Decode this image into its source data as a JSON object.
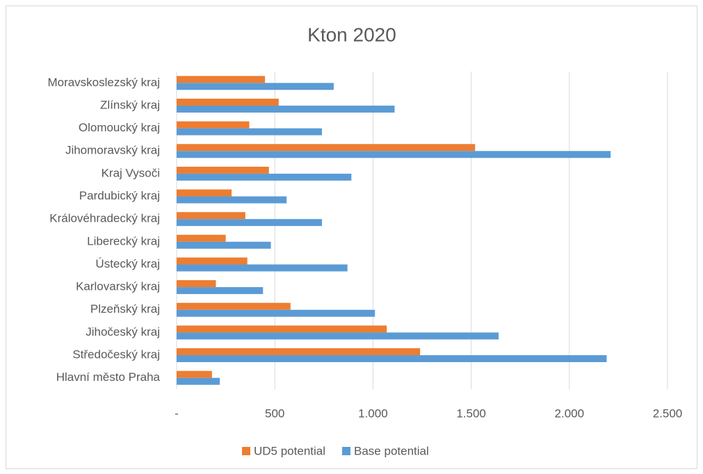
{
  "chart_data": {
    "type": "bar",
    "orientation": "horizontal",
    "title": "Kton 2020",
    "categories": [
      "Hlavní město Praha",
      "Středočeský kraj",
      "Jihočeský kraj",
      "Plzeňský kraj",
      "Karlovarský kraj",
      "Ústecký kraj",
      "Liberecký kraj",
      "Královéhradecký kraj",
      "Pardubický kraj",
      "Kraj Vysoči",
      "Jihomoravský kraj",
      "Olomoucký kraj",
      "Zlínský kraj",
      "Moravskoslezský kraj"
    ],
    "series": [
      {
        "name": "UD5 potential",
        "color": "#ed7d31",
        "values": [
          180,
          1240,
          1070,
          580,
          200,
          360,
          250,
          350,
          280,
          470,
          1520,
          370,
          520,
          450
        ]
      },
      {
        "name": "Base potential",
        "color": "#5b9bd5",
        "values": [
          220,
          2190,
          1640,
          1010,
          440,
          870,
          480,
          740,
          560,
          890,
          2210,
          740,
          1110,
          800
        ]
      }
    ],
    "xlim": [
      0,
      2500
    ],
    "xticks": [
      {
        "value": 0,
        "label": "-"
      },
      500,
      {
        "value": 1000,
        "label": "1.000"
      },
      {
        "value": 1500,
        "label": "1.500"
      },
      {
        "value": 2000,
        "label": "2.000"
      },
      {
        "value": 2500,
        "label": "2.500"
      }
    ],
    "grid": true,
    "legend": "bottom"
  }
}
